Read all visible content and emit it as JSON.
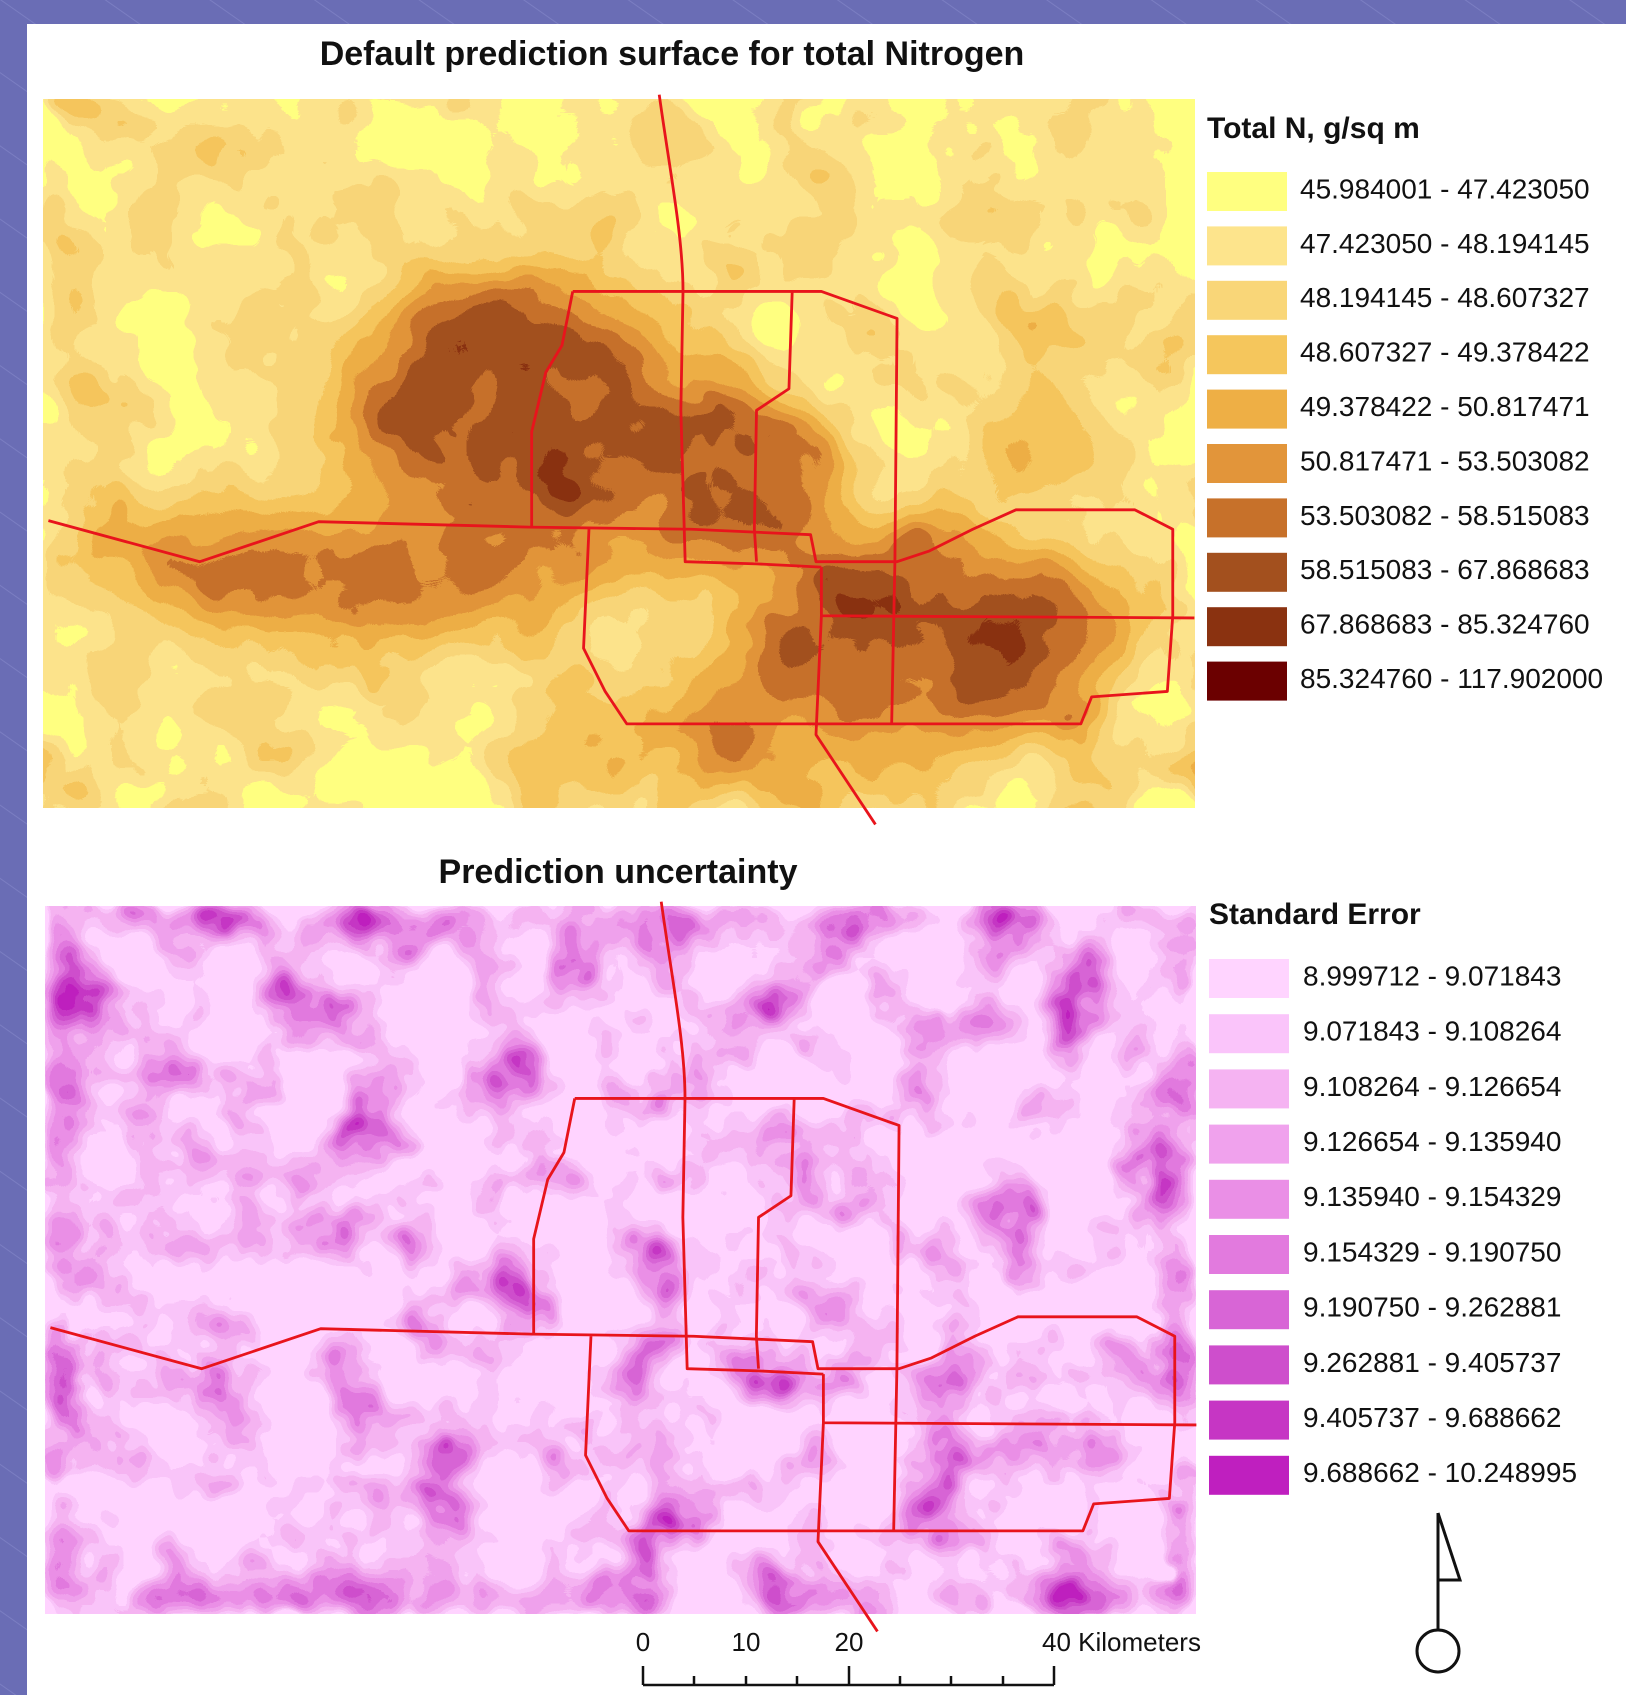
{
  "maps": [
    {
      "title": "Default prediction surface for total Nitrogen",
      "legend_title": "Total N, g/sq m",
      "legend": [
        {
          "label": "45.984001 - 47.423050",
          "color": "#ffff80"
        },
        {
          "label": "47.423050 - 48.194145",
          "color": "#fde48c"
        },
        {
          "label": "48.194145 - 48.607327",
          "color": "#f9d678"
        },
        {
          "label": "48.607327 - 49.378422",
          "color": "#f5c65c"
        },
        {
          "label": "49.378422 - 50.817471",
          "color": "#eeaf45"
        },
        {
          "label": "50.817471 - 53.503082",
          "color": "#e2953a"
        },
        {
          "label": "53.503082 - 58.515083",
          "color": "#c7712a"
        },
        {
          "label": "58.515083 - 67.868683",
          "color": "#a3501e"
        },
        {
          "label": "67.868683 - 85.324760",
          "color": "#8a3210"
        },
        {
          "label": "85.324760 - 117.902000",
          "color": "#6b0000"
        }
      ]
    },
    {
      "title": "Prediction uncertainty",
      "legend_title": "Standard Error",
      "legend": [
        {
          "label": "8.999712 - 9.071843",
          "color": "#ffd4ff"
        },
        {
          "label": "9.071843 - 9.108264",
          "color": "#fac4fa"
        },
        {
          "label": "9.108264 - 9.126654",
          "color": "#f5b3f2"
        },
        {
          "label": "9.126654 - 9.135940",
          "color": "#f0a2ed"
        },
        {
          "label": "9.135940 - 9.154329",
          "color": "#ea8fe6"
        },
        {
          "label": "9.154329 - 9.190750",
          "color": "#e27ade"
        },
        {
          "label": "9.190750 - 9.262881",
          "color": "#d865d6"
        },
        {
          "label": "9.262881 - 9.405737",
          "color": "#ce4ecc"
        },
        {
          "label": "9.405737 - 9.688662",
          "color": "#c636c4"
        },
        {
          "label": "9.688662 - 10.248995",
          "color": "#bf1fbf"
        }
      ]
    }
  ],
  "scale_bar": {
    "labels": [
      "0",
      "10",
      "20",
      "40 Kilometers"
    ]
  }
}
